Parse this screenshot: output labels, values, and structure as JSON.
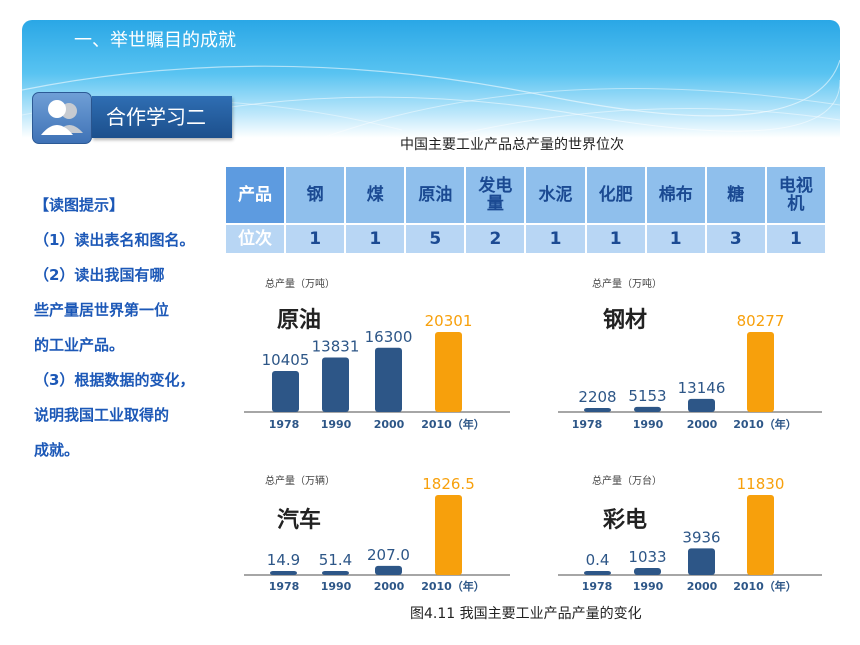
{
  "header": {
    "title": "一、举世瞩目的成就"
  },
  "badge": {
    "label": "合作学习二",
    "icon": "users-icon"
  },
  "table": {
    "title": "中国主要工业产品总产量的世界位次",
    "row_headers": [
      "产品",
      "位次"
    ],
    "products": [
      "钢",
      "煤",
      "原油",
      "发电量",
      "水泥",
      "化肥",
      "棉布",
      "糖",
      "电视机"
    ],
    "ranks": [
      "1",
      "1",
      "5",
      "2",
      "1",
      "1",
      "1",
      "3",
      "1"
    ]
  },
  "tips": {
    "heading": "【读图提示】",
    "lines": [
      "（1）读出表名和图名。",
      "（2）读出我国有哪",
      "些产量居世界第一位",
      "的工业产品。",
      "（3）根据数据的变化，",
      "说明我国工业取得的",
      "成就。"
    ]
  },
  "chart_data": [
    {
      "type": "bar",
      "title": "原油",
      "ylabel": "总产量（万吨）",
      "categories": [
        "1978",
        "1990",
        "2000",
        "2010（年）"
      ],
      "values": [
        10405,
        13831,
        16300,
        20301
      ],
      "value_labels": [
        "10405",
        "13831",
        "16300",
        "20301"
      ],
      "colors": [
        "#2d5687",
        "#2d5687",
        "#2d5687",
        "#f7a00c"
      ],
      "grid": false
    },
    {
      "type": "bar",
      "title": "钢材",
      "ylabel": "总产量（万吨）",
      "categories": [
        "1978",
        "1990",
        "2000",
        "2010（年）"
      ],
      "values": [
        2208,
        5153,
        13146,
        80277
      ],
      "value_labels": [
        "2208",
        "5153",
        "13146",
        "80277"
      ],
      "colors": [
        "#2d5687",
        "#2d5687",
        "#2d5687",
        "#f7a00c"
      ],
      "grid": false
    },
    {
      "type": "bar",
      "title": "汽车",
      "ylabel": "总产量（万辆）",
      "categories": [
        "1978",
        "1990",
        "2000",
        "2010（年）"
      ],
      "values": [
        14.9,
        51.4,
        207.0,
        1826.5
      ],
      "value_labels": [
        "14.9",
        "51.4",
        "207.0",
        "1826.5"
      ],
      "colors": [
        "#2d5687",
        "#2d5687",
        "#2d5687",
        "#f7a00c"
      ],
      "grid": false
    },
    {
      "type": "bar",
      "title": "彩电",
      "ylabel": "总产量（万台）",
      "categories": [
        "1978",
        "1990",
        "2000",
        "2010（年）"
      ],
      "values": [
        0.4,
        1033,
        3936,
        11830
      ],
      "value_labels": [
        "0.4",
        "1033",
        "3936",
        "11830"
      ],
      "colors": [
        "#2d5687",
        "#2d5687",
        "#2d5687",
        "#f7a00c"
      ],
      "grid": false
    }
  ],
  "figure": {
    "caption": "图4.11  我国主要工业产品产量的变化"
  }
}
